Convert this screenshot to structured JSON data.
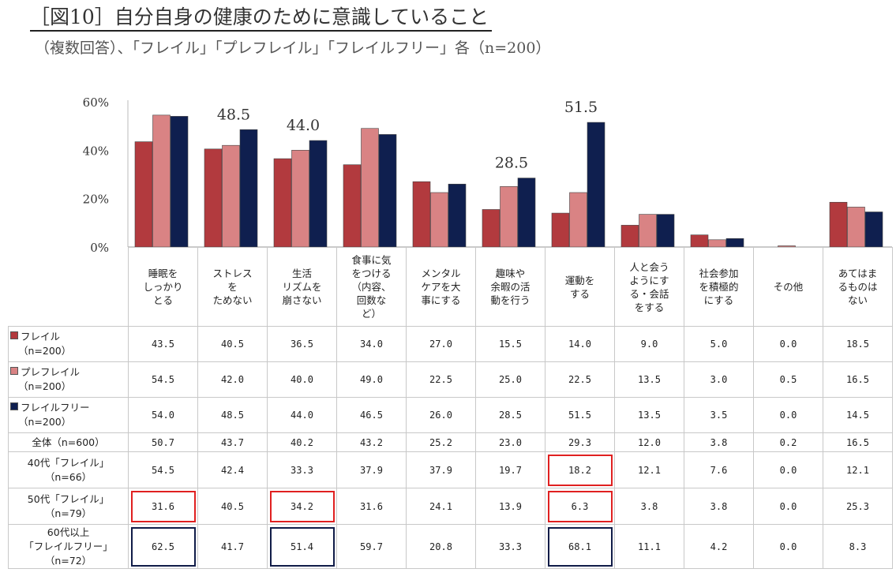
{
  "title": "［図10］自分自身の健康のために意識していること",
  "subtitle": "（複数回答）、「フレイル」「プレフレイル」「フレイルフリー」各（n=200）",
  "chart_data": {
    "type": "bar",
    "title": "［図10］自分自身の健康のために意識していること",
    "ylim": [
      0,
      60
    ],
    "yticks": [
      "0%",
      "20%",
      "40%",
      "60%"
    ],
    "categories": [
      "睡眠をしっかりとる",
      "ストレスをためない",
      "生活リズムを崩さない",
      "食事に気をつける（内容、回数など）",
      "メンタルケアを大事にする",
      "趣味や余暇の活動を行う",
      "運動をする",
      "人と会うようにする・会話をする",
      "社会参加を積極的にする",
      "その他",
      "あてはまるものはない"
    ],
    "category_lines": [
      [
        "睡眠を",
        "しっかり",
        "とる"
      ],
      [
        "ストレス",
        "を",
        "ためない"
      ],
      [
        "生活",
        "リズムを",
        "崩さない"
      ],
      [
        "食事に気",
        "をつける",
        "（内容、",
        "回数な",
        "ど）"
      ],
      [
        "メンタル",
        "ケアを大",
        "事にする"
      ],
      [
        "趣味や",
        "余暇の活",
        "動を行う"
      ],
      [
        "運動を",
        "する"
      ],
      [
        "人と会う",
        "ようにす",
        "る・会話",
        "をする"
      ],
      [
        "社会参加",
        "を積極的",
        "にする"
      ],
      [
        "その他"
      ],
      [
        "あてはま",
        "るものは",
        "ない"
      ]
    ],
    "series": [
      {
        "name": "フレイル",
        "n": "（n=200）",
        "color": "#b23a3e",
        "values": [
          43.5,
          40.5,
          36.5,
          34.0,
          27.0,
          15.5,
          14.0,
          9.0,
          5.0,
          0.0,
          18.5
        ]
      },
      {
        "name": "プレフレイル",
        "n": "（n=200）",
        "color": "#d98384",
        "values": [
          54.5,
          42.0,
          40.0,
          49.0,
          22.5,
          25.0,
          22.5,
          13.5,
          3.0,
          0.5,
          16.5
        ]
      },
      {
        "name": "フレイルフリー",
        "n": "（n=200）",
        "color": "#0f1f4f",
        "values": [
          54.0,
          48.5,
          44.0,
          46.5,
          26.0,
          28.5,
          51.5,
          13.5,
          3.5,
          0.0,
          14.5
        ]
      }
    ],
    "annotations": [
      {
        "category_index": 1,
        "text": "48.5"
      },
      {
        "category_index": 2,
        "text": "44.0"
      },
      {
        "category_index": 5,
        "text": "28.5"
      },
      {
        "category_index": 6,
        "text": "51.5"
      }
    ],
    "extra_rows": [
      {
        "label": [
          "全体（n=600）"
        ],
        "values": [
          "50.7",
          "43.7",
          "40.2",
          "43.2",
          "25.2",
          "23.0",
          "29.3",
          "12.0",
          "3.8",
          "0.2",
          "16.5"
        ],
        "highlight": []
      },
      {
        "label": [
          "40代「フレイル」",
          "（n=66）"
        ],
        "values": [
          "54.5",
          "42.4",
          "33.3",
          "37.9",
          "37.9",
          "19.7",
          "18.2",
          "12.1",
          "7.6",
          "0.0",
          "12.1"
        ],
        "highlight": [
          6
        ],
        "highlight_color": "red"
      },
      {
        "label": [
          "50代「フレイル」",
          "（n=79）"
        ],
        "values": [
          "31.6",
          "40.5",
          "34.2",
          "31.6",
          "24.1",
          "13.9",
          "6.3",
          "3.8",
          "3.8",
          "0.0",
          "25.3"
        ],
        "highlight": [
          0,
          2,
          6
        ],
        "highlight_color": "red"
      },
      {
        "label": [
          "60代以上",
          "「フレイルフリー」",
          "（n=72）"
        ],
        "values": [
          "62.5",
          "41.7",
          "51.4",
          "59.7",
          "20.8",
          "33.3",
          "68.1",
          "11.1",
          "4.2",
          "0.0",
          "8.3"
        ],
        "highlight": [
          0,
          2,
          6
        ],
        "highlight_color": "navy"
      }
    ]
  }
}
